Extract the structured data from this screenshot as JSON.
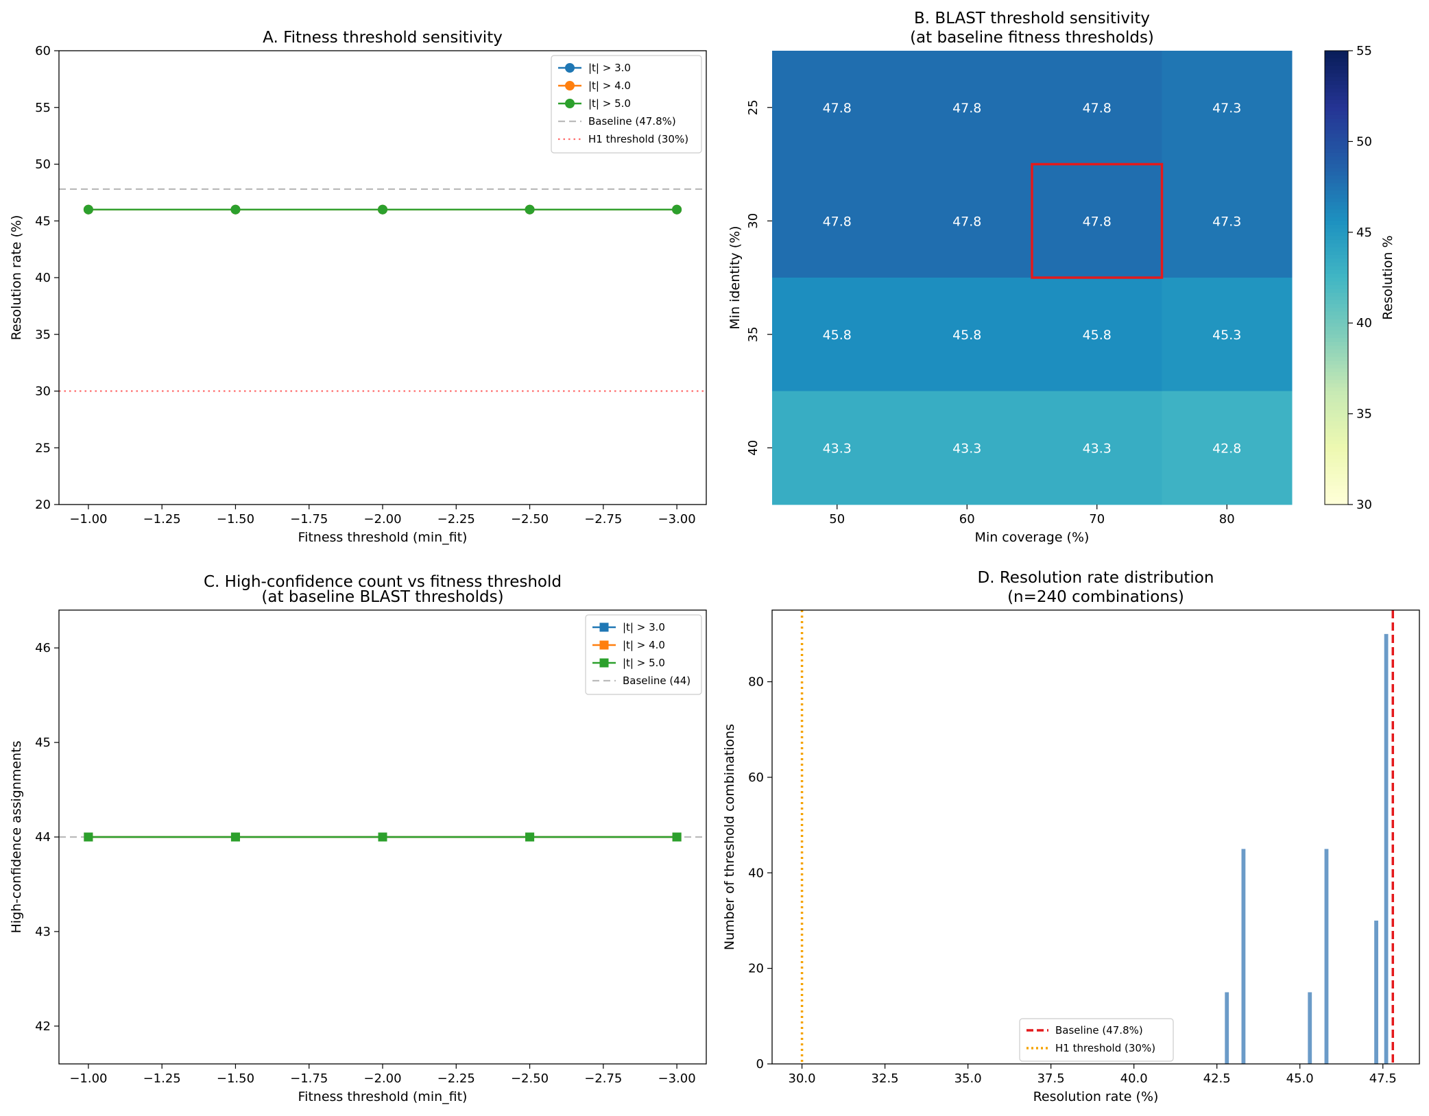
{
  "colors": {
    "blue": "#1f77b4",
    "orange": "#ff7f0e",
    "green": "#2ca02c",
    "baseline_gray": "#bbbbbb",
    "h1_red": "#ff6b6b",
    "highlight_red": "#e41a1c",
    "hist_bar": "#6b9bc8",
    "baseline_red": "#e41a1c",
    "h1_orange": "#f5a300"
  },
  "chart_data": [
    {
      "id": "A",
      "type": "line",
      "title": "A. Fitness threshold sensitivity",
      "xlabel": "Fitness threshold (min_fit)",
      "ylabel": "Resolution rate (%)",
      "xlim": [
        -0.9,
        -3.1
      ],
      "ylim": [
        20,
        60
      ],
      "xticks": [
        -1.0,
        -1.25,
        -1.5,
        -1.75,
        -2.0,
        -2.25,
        -2.5,
        -2.75,
        -3.0
      ],
      "xtick_labels": [
        "−1.00",
        "−1.25",
        "−1.50",
        "−1.75",
        "−2.00",
        "−2.25",
        "−2.50",
        "−2.75",
        "−3.00"
      ],
      "yticks": [
        20,
        25,
        30,
        35,
        40,
        45,
        50,
        55,
        60
      ],
      "ytick_labels": [
        "20",
        "25",
        "30",
        "35",
        "40",
        "45",
        "50",
        "55",
        "60"
      ],
      "marker": "circle",
      "x": [
        -1.0,
        -1.5,
        -2.0,
        -2.5,
        -3.0
      ],
      "series": [
        {
          "name": "|t| > 3.0",
          "color": "#1f77b4",
          "values": [
            46.0,
            46.0,
            46.0,
            46.0,
            46.0
          ]
        },
        {
          "name": "|t| > 4.0",
          "color": "#ff7f0e",
          "values": [
            46.0,
            46.0,
            46.0,
            46.0,
            46.0
          ]
        },
        {
          "name": "|t| > 5.0",
          "color": "#2ca02c",
          "values": [
            46.0,
            46.0,
            46.0,
            46.0,
            46.0
          ]
        }
      ],
      "reference_lines": [
        {
          "name": "Baseline (47.8%)",
          "value": 47.8,
          "style": "dashed",
          "color": "#bbbbbb"
        },
        {
          "name": "H1 threshold (30%)",
          "value": 30,
          "style": "dotted",
          "color": "#ff6b6b"
        }
      ],
      "legend": "top-right"
    },
    {
      "id": "B",
      "type": "heatmap",
      "title": "B. BLAST threshold sensitivity",
      "subtitle": "(at baseline fitness thresholds)",
      "xlabel": "Min coverage (%)",
      "ylabel": "Min identity (%)",
      "x_categories": [
        "50",
        "60",
        "70",
        "80"
      ],
      "y_categories": [
        "25",
        "30",
        "35",
        "40"
      ],
      "values": [
        [
          47.8,
          47.8,
          47.8,
          47.3
        ],
        [
          47.8,
          47.8,
          47.8,
          47.3
        ],
        [
          45.8,
          45.8,
          45.8,
          45.3
        ],
        [
          43.3,
          43.3,
          43.3,
          42.8
        ]
      ],
      "value_labels": [
        [
          "47.8",
          "47.8",
          "47.8",
          "47.3"
        ],
        [
          "47.8",
          "47.8",
          "47.8",
          "47.3"
        ],
        [
          "45.8",
          "45.8",
          "45.8",
          "45.3"
        ],
        [
          "43.3",
          "43.3",
          "43.3",
          "42.8"
        ]
      ],
      "highlight_cell": {
        "row": 1,
        "col": 2
      },
      "colorbar": {
        "label": "Resolution %",
        "range": [
          30,
          55
        ],
        "ticks": [
          "30",
          "35",
          "40",
          "45",
          "50",
          "55"
        ],
        "colormap": "YlGnBu"
      }
    },
    {
      "id": "C",
      "type": "line",
      "title": "C. High-confidence count vs fitness threshold",
      "subtitle": "(at baseline BLAST thresholds)",
      "xlabel": "Fitness threshold (min_fit)",
      "ylabel": "High-confidence assignments",
      "xlim": [
        -0.9,
        -3.1
      ],
      "ylim": [
        41.6,
        46.4
      ],
      "xticks": [
        -1.0,
        -1.25,
        -1.5,
        -1.75,
        -2.0,
        -2.25,
        -2.5,
        -2.75,
        -3.0
      ],
      "xtick_labels": [
        "−1.00",
        "−1.25",
        "−1.50",
        "−1.75",
        "−2.00",
        "−2.25",
        "−2.50",
        "−2.75",
        "−3.00"
      ],
      "yticks": [
        42,
        43,
        44,
        45,
        46
      ],
      "ytick_labels": [
        "42",
        "43",
        "44",
        "45",
        "46"
      ],
      "marker": "square",
      "x": [
        -1.0,
        -1.5,
        -2.0,
        -2.5,
        -3.0
      ],
      "series": [
        {
          "name": "|t| > 3.0",
          "color": "#1f77b4",
          "values": [
            44,
            44,
            44,
            44,
            44
          ]
        },
        {
          "name": "|t| > 4.0",
          "color": "#ff7f0e",
          "values": [
            44,
            44,
            44,
            44,
            44
          ]
        },
        {
          "name": "|t| > 5.0",
          "color": "#2ca02c",
          "values": [
            44,
            44,
            44,
            44,
            44
          ]
        }
      ],
      "reference_lines": [
        {
          "name": "Baseline (44)",
          "value": 44,
          "style": "dashed",
          "color": "#bbbbbb"
        }
      ],
      "legend": "top-right"
    },
    {
      "id": "D",
      "type": "bar",
      "title": "D. Resolution rate distribution",
      "subtitle": "(n=240 combinations)",
      "xlabel": "Resolution rate (%)",
      "ylabel": "Number of threshold combinations",
      "xlim": [
        29.1,
        48.6
      ],
      "ylim": [
        0,
        95
      ],
      "xticks": [
        30.0,
        32.5,
        35.0,
        37.5,
        40.0,
        42.5,
        45.0,
        47.5
      ],
      "xtick_labels": [
        "30.0",
        "32.5",
        "35.0",
        "37.5",
        "40.0",
        "42.5",
        "45.0",
        "47.5"
      ],
      "yticks": [
        0,
        20,
        40,
        60,
        80
      ],
      "ytick_labels": [
        "0",
        "20",
        "40",
        "60",
        "80"
      ],
      "bin_width": 0.12,
      "bins": [
        {
          "x": 42.8,
          "count": 15
        },
        {
          "x": 43.3,
          "count": 45
        },
        {
          "x": 45.3,
          "count": 15
        },
        {
          "x": 45.8,
          "count": 45
        },
        {
          "x": 47.3,
          "count": 30
        },
        {
          "x": 47.6,
          "count": 90
        }
      ],
      "reference_lines": [
        {
          "name": "Baseline (47.8%)",
          "value": 47.8,
          "style": "dashed",
          "color": "#e41a1c"
        },
        {
          "name": "H1 threshold (30%)",
          "value": 30,
          "style": "dotted",
          "color": "#f5a300"
        }
      ],
      "legend": "bottom-center"
    }
  ]
}
